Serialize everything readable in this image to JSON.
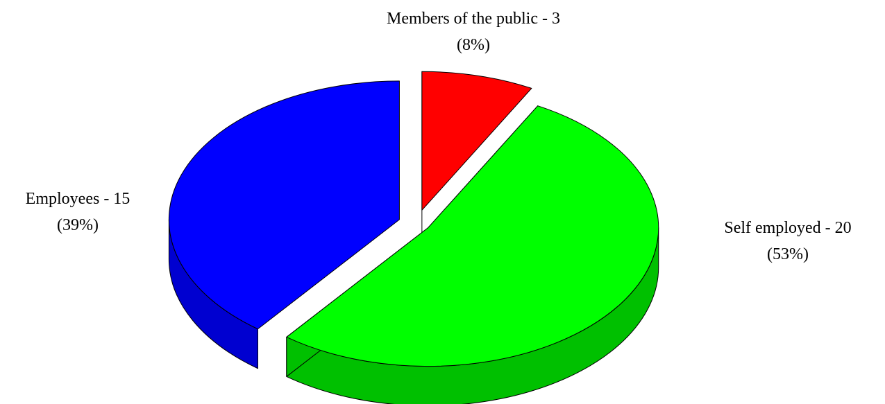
{
  "chart_data": {
    "type": "pie",
    "three_d": true,
    "exploded": true,
    "title": "",
    "slices": [
      {
        "name": "Members of the public",
        "value": 3,
        "percent": 8,
        "color": "#FF0000",
        "side_color": "#C01515",
        "label": "Members of the public - 3",
        "percent_label": "(8%)"
      },
      {
        "name": "Self employed",
        "value": 20,
        "percent": 53,
        "color": "#00FF00",
        "side_color": "#00C000",
        "label": "Self employed - 20",
        "percent_label": "(53%)"
      },
      {
        "name": "Employees",
        "value": 15,
        "percent": 39,
        "color": "#0000FF",
        "side_color": "#0000D0",
        "label": "Employees - 15",
        "percent_label": "(39%)"
      }
    ],
    "legend": "none",
    "start_angle": "12 o'clock, clockwise"
  }
}
